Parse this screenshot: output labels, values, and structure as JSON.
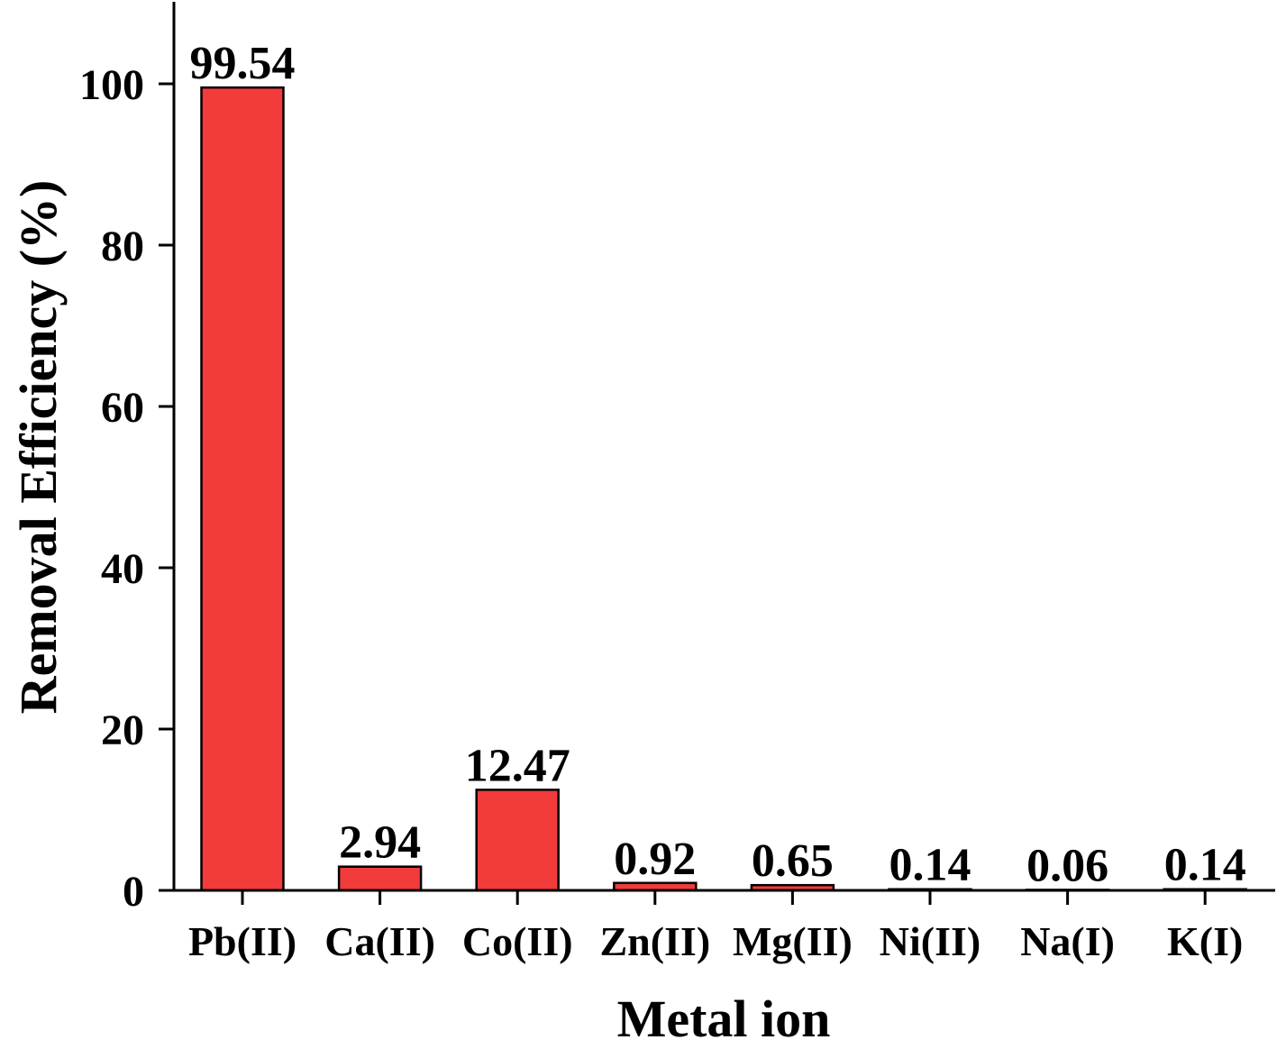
{
  "chart_data": {
    "type": "bar",
    "categories": [
      "Pb(II)",
      "Ca(II)",
      "Co(II)",
      "Zn(II)",
      "Mg(II)",
      "Ni(II)",
      "Na(I)",
      "K(I)"
    ],
    "values": [
      99.54,
      2.94,
      12.47,
      0.92,
      0.65,
      0.14,
      0.06,
      0.14
    ],
    "data_labels": [
      "99.54",
      "2.94",
      "12.47",
      "0.92",
      "0.65",
      "0.14",
      "0.06",
      "0.14"
    ],
    "title": "",
    "xlabel": "Metal ion",
    "ylabel": "Removal Efficiency (%)",
    "ylim": [
      0,
      110
    ],
    "yticks": [
      0,
      20,
      40,
      60,
      80,
      100
    ],
    "ytick_labels": [
      "0",
      "20",
      "40",
      "60",
      "80",
      "100"
    ],
    "grid": false,
    "legend": "none",
    "colors": {
      "bar_fill": "#f23b3b",
      "bar_stroke": "#000000",
      "axis": "#000000",
      "background": "#ffffff"
    }
  }
}
